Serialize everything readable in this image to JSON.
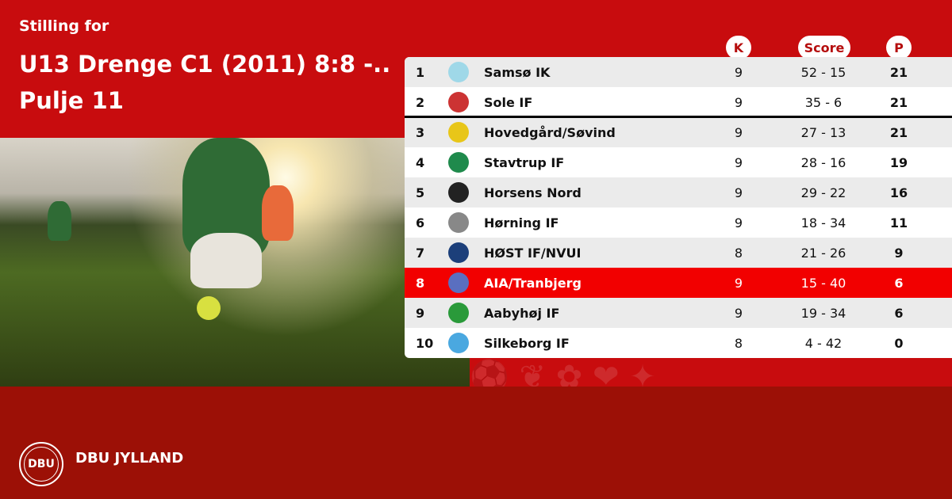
{
  "header": {
    "subtitle": "Stilling for",
    "title": "U13 Drenge C1 (2011) 8:8 -.. Pulje 11"
  },
  "columns": {
    "k": "K",
    "score": "Score",
    "p": "P"
  },
  "colors": {
    "top": "#c80c0e",
    "bottom": "#9c1006",
    "highlight": "#f20000"
  },
  "rows": [
    {
      "pos": "1",
      "team": "Samsø IK",
      "k": "9",
      "score": "52 - 15",
      "p": "21",
      "logo_color": "#9fd8e8"
    },
    {
      "pos": "2",
      "team": "Sole IF",
      "k": "9",
      "score": "35 - 6",
      "p": "21",
      "logo_color": "#c33"
    },
    {
      "pos": "3",
      "team": "Hovedgård/Søvind",
      "k": "9",
      "score": "27 - 13",
      "p": "21",
      "logo_color": "#e8c619"
    },
    {
      "pos": "4",
      "team": "Stavtrup IF",
      "k": "9",
      "score": "28 - 16",
      "p": "19",
      "logo_color": "#1f8a4c"
    },
    {
      "pos": "5",
      "team": "Horsens Nord",
      "k": "9",
      "score": "29 - 22",
      "p": "16",
      "logo_color": "#222"
    },
    {
      "pos": "6",
      "team": "Hørning IF",
      "k": "9",
      "score": "18 - 34",
      "p": "11",
      "logo_color": "#888"
    },
    {
      "pos": "7",
      "team": "HØST IF/NVUI",
      "k": "8",
      "score": "21 - 26",
      "p": "9",
      "logo_color": "#1c3f7a"
    },
    {
      "pos": "8",
      "team": "AIA/Tranbjerg",
      "k": "9",
      "score": "15 - 40",
      "p": "6",
      "logo_color": "#5a6fc0",
      "highlighted": true
    },
    {
      "pos": "9",
      "team": "Aabyhøj IF",
      "k": "9",
      "score": "19 - 34",
      "p": "6",
      "logo_color": "#2a9a3a"
    },
    {
      "pos": "10",
      "team": "Silkeborg IF",
      "k": "8",
      "score": "4 - 42",
      "p": "0",
      "logo_color": "#4aa8e0"
    }
  ],
  "footer": {
    "brand": "DBU JYLLAND",
    "logo_text": "DBU"
  }
}
